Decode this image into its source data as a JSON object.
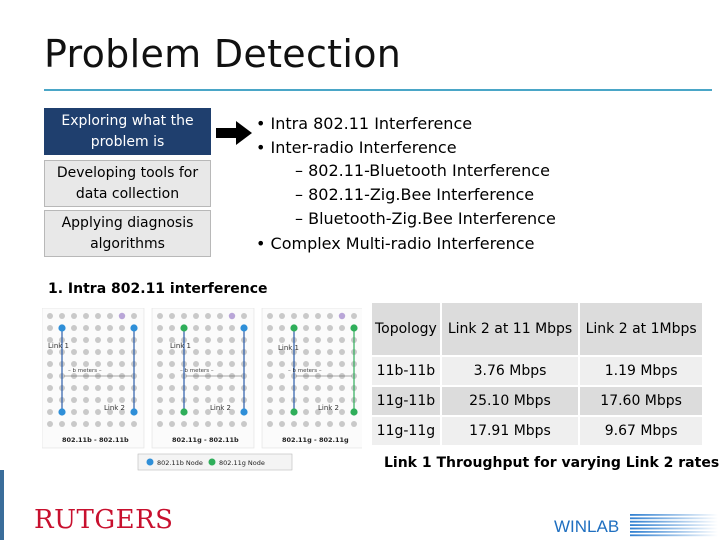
{
  "slide": {
    "title": "Problem Detection",
    "steps": [
      "Exploring what the problem is",
      "Developing tools for data collection",
      "Applying diagnosis algorithms"
    ],
    "bullets": [
      "• Intra 802.11 Interference",
      "• Inter-radio Interference",
      "– 802.11-Bluetooth Interference",
      "– 802.11-Zig.Bee Interference",
      "– Bluetooth-Zig.Bee Interference",
      "• Complex Multi-radio Interference"
    ],
    "section_heading": "1. Intra 802.11 interference"
  },
  "figure": {
    "panels": [
      {
        "link1": "Link 1",
        "link2": "Link 2",
        "distance": "– b meters –",
        "label": "802.11b - 802.11b"
      },
      {
        "link1": "Link 1",
        "link2": "Link 2",
        "distance": "– b meters –",
        "label": "802.11g - 802.11b"
      },
      {
        "link1": "Link 1",
        "link2": "Link 2",
        "distance": "– b meters –",
        "label": "802.11g - 802.11g"
      }
    ],
    "legend": [
      "802.11b Node",
      "802.11g Node"
    ],
    "colors": {
      "b_node": "#2f8fd8",
      "g_node": "#2fae5a",
      "grid_node": "#c9c9c9",
      "relay_node": "#b9a6d8"
    }
  },
  "table": {
    "headers": [
      "Topology",
      "Link 2 at 11 Mbps",
      "Link 2  at 1Mbps"
    ],
    "rows": [
      [
        "11b-11b",
        "3.76 Mbps",
        "1.19 Mbps"
      ],
      [
        "11g-11b",
        "25.10 Mbps",
        "17.60 Mbps"
      ],
      [
        "11g-11g",
        "17.91 Mbps",
        "9.67 Mbps"
      ]
    ],
    "caption": "Link 1 Throughput for varying Link 2 rates"
  },
  "logos": {
    "rutgers": "RUTGERS",
    "winlab": "WINLAB",
    "colors": {
      "rutgers": "#c8102e",
      "winlab": "#1f6fc0"
    }
  }
}
